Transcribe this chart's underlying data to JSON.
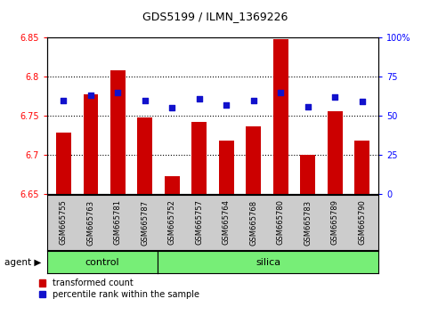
{
  "title": "GDS5199 / ILMN_1369226",
  "samples": [
    "GSM665755",
    "GSM665763",
    "GSM665781",
    "GSM665787",
    "GSM665752",
    "GSM665757",
    "GSM665764",
    "GSM665768",
    "GSM665780",
    "GSM665783",
    "GSM665789",
    "GSM665790"
  ],
  "red_values": [
    6.728,
    6.778,
    6.808,
    6.748,
    6.672,
    6.742,
    6.718,
    6.736,
    6.848,
    6.7,
    6.756,
    6.718
  ],
  "blue_percentiles": [
    60,
    63,
    65,
    60,
    55,
    61,
    57,
    60,
    65,
    56,
    62,
    59
  ],
  "ylim_left": [
    6.65,
    6.85
  ],
  "ylim_right": [
    0,
    100
  ],
  "yticks_left": [
    6.65,
    6.7,
    6.75,
    6.8,
    6.85
  ],
  "yticks_right": [
    0,
    25,
    50,
    75,
    100
  ],
  "ytick_labels_left": [
    "6.65",
    "6.7",
    "6.75",
    "6.8",
    "6.85"
  ],
  "ytick_labels_right": [
    "0",
    "25",
    "50",
    "75",
    "100%"
  ],
  "bar_color": "#cc0000",
  "dot_color": "#1111cc",
  "control_samples": 4,
  "control_label": "control",
  "silica_label": "silica",
  "agent_label": "agent",
  "legend_red": "transformed count",
  "legend_blue": "percentile rank within the sample",
  "control_color": "#77ee77",
  "silica_color": "#77ee77",
  "bg_color": "#cccccc",
  "baseline": 6.65,
  "grid_lines": [
    6.7,
    6.75,
    6.8
  ]
}
